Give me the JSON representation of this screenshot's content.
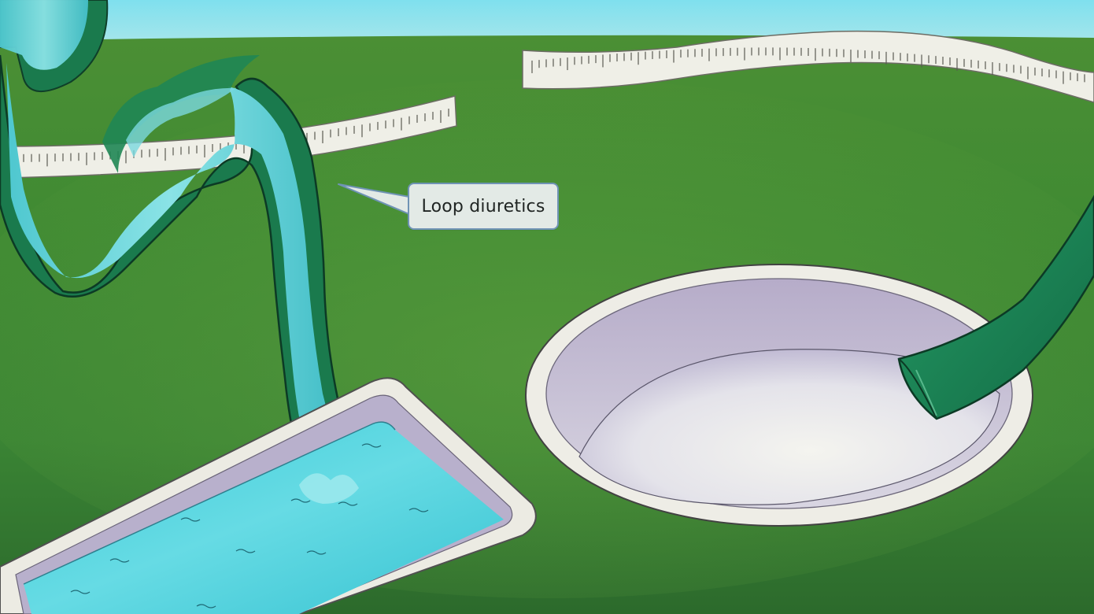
{
  "scene": {
    "callout_label": "Loop diuretics"
  },
  "colors": {
    "sky": "#8fdde8",
    "grass_light": "#5f9f3c",
    "grass_dark": "#2e6e2a",
    "tube_dark": "#1a7a4d",
    "water": "#4fd0dc",
    "tape": "#eeeee6",
    "callout_bg": "#e3eae6",
    "callout_border": "#6f93b5"
  }
}
